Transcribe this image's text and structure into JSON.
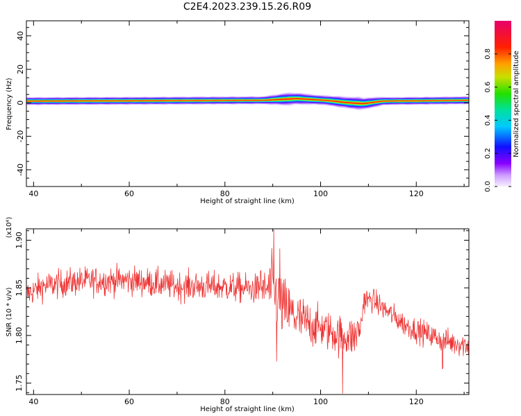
{
  "title": "C2E4.2023.239.15.26.R09",
  "colors": {
    "snr_line": "#ee3333",
    "axis": "#000000",
    "background": "#ffffff"
  },
  "chart_data": [
    {
      "type": "heatmap",
      "xlabel": "Height of straight line (km)",
      "ylabel": "Frequency (Hz)",
      "xlim": [
        38.5,
        131
      ],
      "ylim": [
        -50,
        49
      ],
      "x_ticks": [
        "40",
        "60",
        "80",
        "100",
        "120"
      ],
      "y_ticks": [
        "40",
        "20",
        "0",
        "-20",
        "-40"
      ],
      "colorbar": {
        "label": "Normalized spectral amplitude",
        "range": [
          0,
          1
        ],
        "ticks": [
          "0.0",
          "0.2",
          "0.4",
          "0.6",
          "0.8"
        ]
      },
      "band_summary": {
        "center_frequency_hz": [
          {
            "x": 38.5,
            "f": 1.0
          },
          {
            "x": 88,
            "f": 1.5
          },
          {
            "x": 95,
            "f": 2.5
          },
          {
            "x": 101,
            "f": 1.5
          },
          {
            "x": 106,
            "f": 0.0
          },
          {
            "x": 109,
            "f": -0.5
          },
          {
            "x": 113,
            "f": 1.0
          },
          {
            "x": 131,
            "f": 1.5
          }
        ],
        "halfwidth_hz": [
          {
            "x": 38.5,
            "w": 2.5
          },
          {
            "x": 88,
            "w": 2.5
          },
          {
            "x": 93,
            "w": 4.0
          },
          {
            "x": 100,
            "w": 3.0
          },
          {
            "x": 108,
            "w": 4.0
          },
          {
            "x": 114,
            "w": 2.5
          },
          {
            "x": 131,
            "w": 2.5
          }
        ]
      }
    },
    {
      "type": "line",
      "xlabel": "Height of straight line (km)",
      "ylabel": "SNR (10 * v/v)",
      "multiplier": "(x10⁴)",
      "xlim": [
        38.5,
        131
      ],
      "ylim": [
        1.738,
        1.912
      ],
      "x_ticks": [
        "40",
        "60",
        "80",
        "100",
        "120"
      ],
      "y_ticks": [
        "1.75",
        "1.80",
        "1.85",
        "1.90"
      ],
      "trend": [
        {
          "x": 38.5,
          "y": 1.843
        },
        {
          "x": 42,
          "y": 1.852
        },
        {
          "x": 50,
          "y": 1.857
        },
        {
          "x": 60,
          "y": 1.858
        },
        {
          "x": 70,
          "y": 1.852
        },
        {
          "x": 80,
          "y": 1.851
        },
        {
          "x": 88,
          "y": 1.848
        },
        {
          "x": 90,
          "y": 1.85
        },
        {
          "x": 92,
          "y": 1.83
        },
        {
          "x": 96,
          "y": 1.815
        },
        {
          "x": 100,
          "y": 1.808
        },
        {
          "x": 104,
          "y": 1.8
        },
        {
          "x": 107,
          "y": 1.798
        },
        {
          "x": 108.5,
          "y": 1.81
        },
        {
          "x": 109,
          "y": 1.838
        },
        {
          "x": 111,
          "y": 1.837
        },
        {
          "x": 114,
          "y": 1.825
        },
        {
          "x": 118,
          "y": 1.81
        },
        {
          "x": 123,
          "y": 1.8
        },
        {
          "x": 127,
          "y": 1.793
        },
        {
          "x": 131,
          "y": 1.79
        }
      ],
      "noise_amplitude": [
        {
          "x": 38.5,
          "a": 0.012
        },
        {
          "x": 88,
          "a": 0.013
        },
        {
          "x": 90,
          "a": 0.03
        },
        {
          "x": 100,
          "a": 0.017
        },
        {
          "x": 107,
          "a": 0.018
        },
        {
          "x": 110,
          "a": 0.01
        },
        {
          "x": 131,
          "a": 0.011
        }
      ],
      "spikes": [
        {
          "x": 90.2,
          "y": 1.911
        },
        {
          "x": 90.8,
          "y": 1.773
        },
        {
          "x": 91.5,
          "y": 1.891
        },
        {
          "x": 87.5,
          "y": 1.868
        },
        {
          "x": 104.6,
          "y": 1.739
        },
        {
          "x": 125.5,
          "y": 1.765
        }
      ]
    }
  ]
}
